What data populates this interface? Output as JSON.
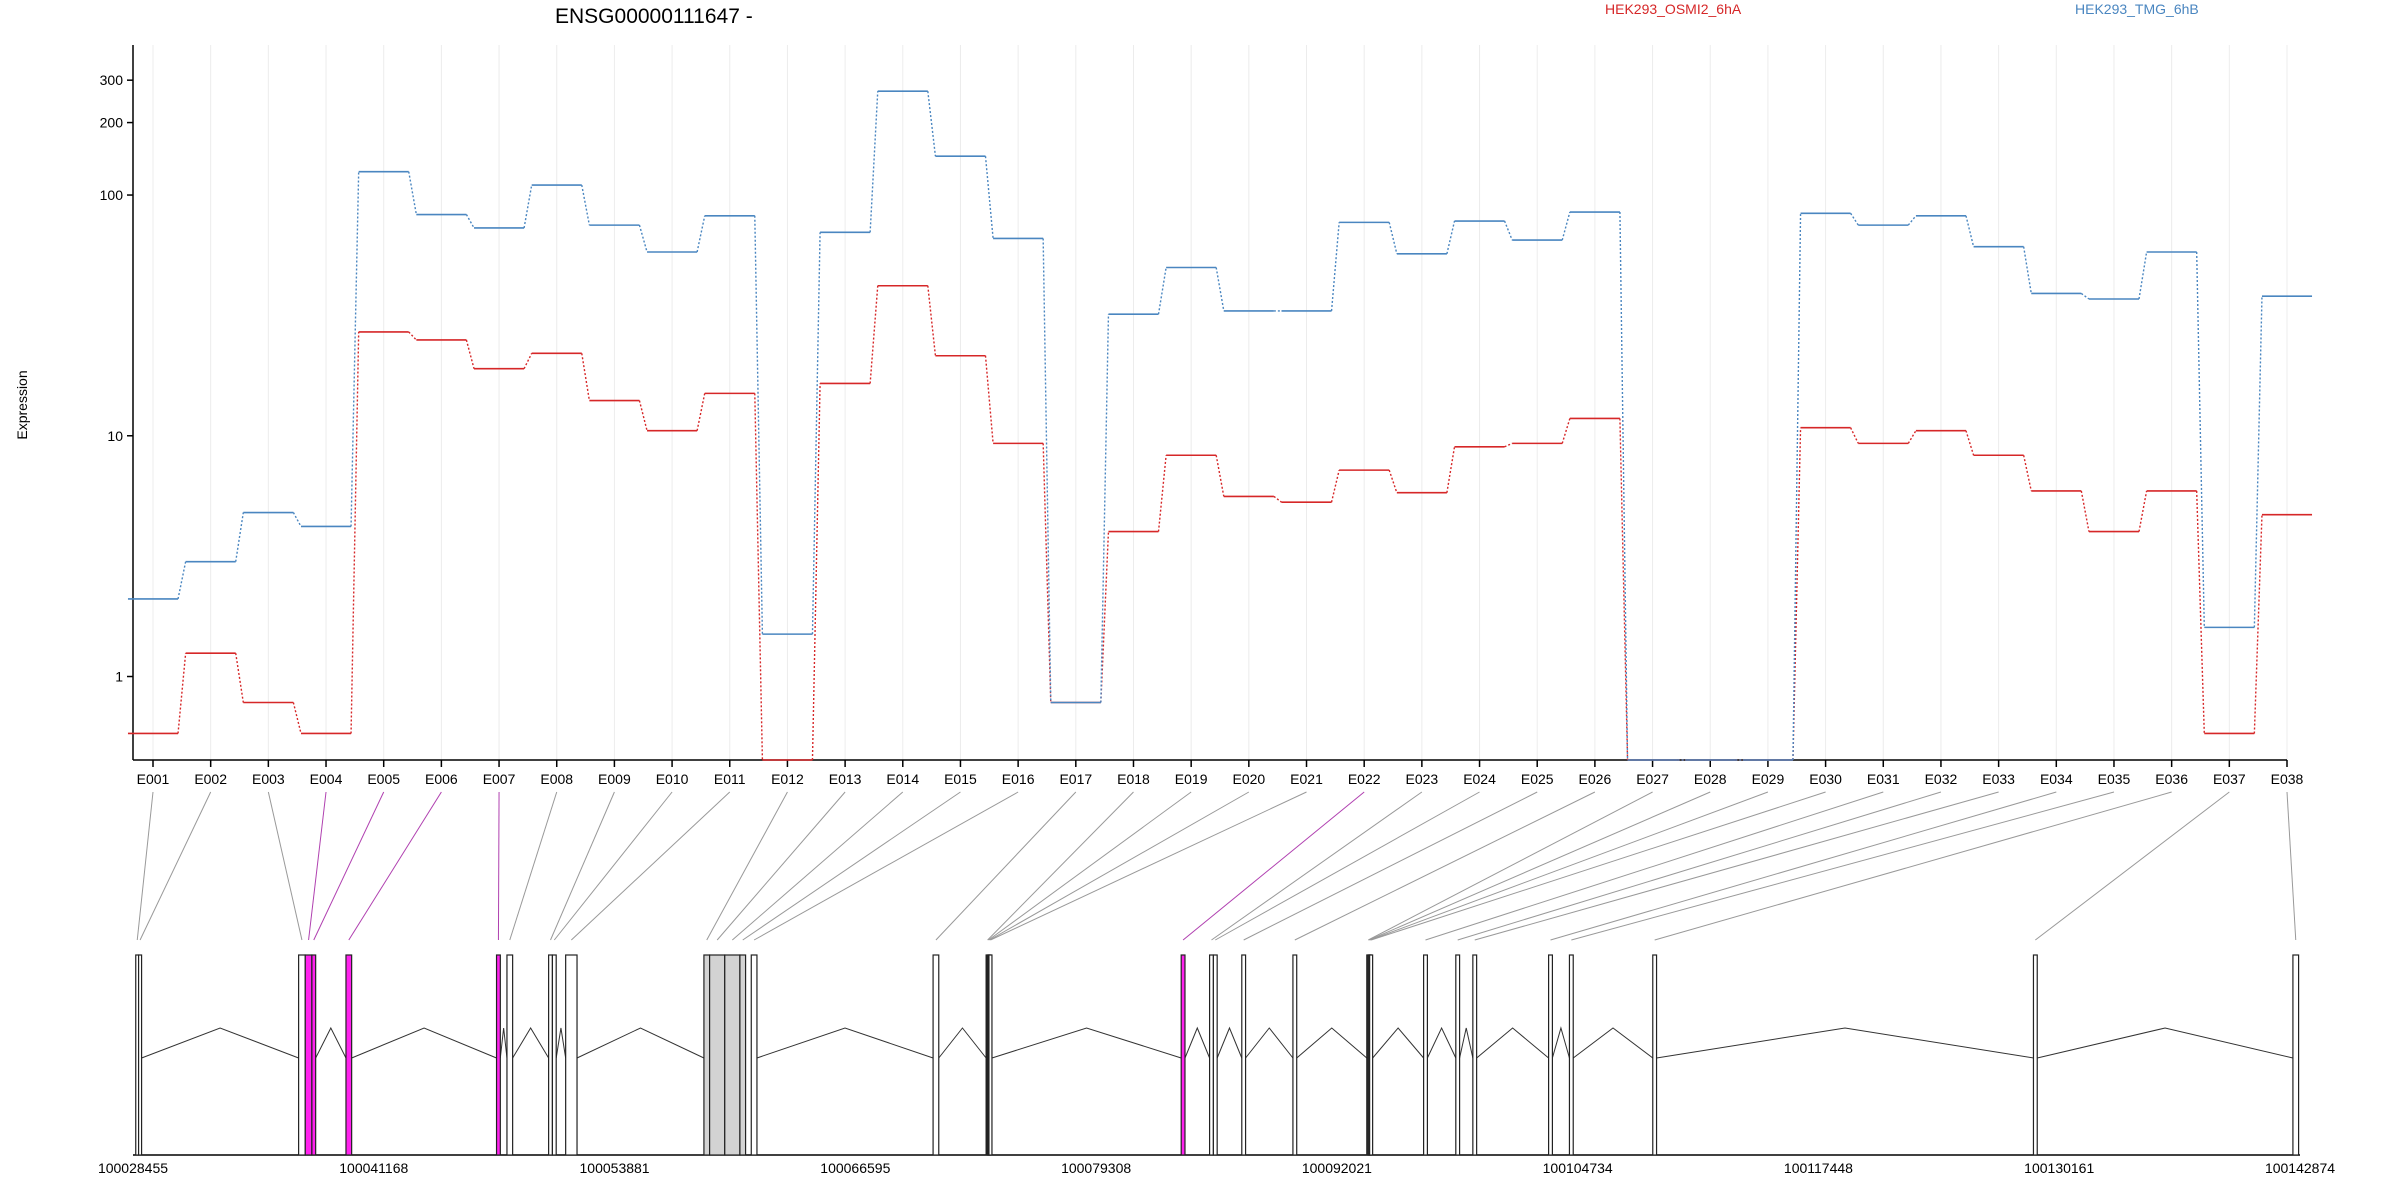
{
  "chart_data": {
    "type": "line",
    "title": "ENSG00000111647 -",
    "ylabel": "Expression",
    "yscale": "log",
    "ylim": [
      0.45,
      420
    ],
    "yticks": [
      1,
      10,
      100,
      200,
      300
    ],
    "grid": "vertical-per-exon",
    "categories": [
      "E001",
      "E002",
      "E003",
      "E004",
      "E005",
      "E006",
      "E007",
      "E008",
      "E009",
      "E010",
      "E011",
      "E012",
      "E013",
      "E014",
      "E015",
      "E016",
      "E017",
      "E018",
      "E019",
      "E020",
      "E021",
      "E022",
      "E023",
      "E024",
      "E025",
      "E026",
      "E027",
      "E028",
      "E029",
      "E030",
      "E031",
      "E032",
      "E033",
      "E034",
      "E035",
      "E036",
      "E037",
      "E038"
    ],
    "series": [
      {
        "name": "HEK293_OSMI2_6hA",
        "color": "#d62728",
        "values": [
          0.58,
          1.25,
          0.78,
          0.58,
          27,
          25,
          19,
          22,
          14,
          10.5,
          15,
          0.45,
          16.5,
          42,
          21.5,
          9.3,
          0.78,
          4,
          8.3,
          5.6,
          5.3,
          7.2,
          5.8,
          9,
          9.3,
          11.8,
          0.45,
          0.45,
          0.45,
          10.8,
          9.3,
          10.5,
          8.3,
          5.9,
          4,
          5.9,
          0.58,
          4.7
        ]
      },
      {
        "name": "HEK293_TMG_6hB",
        "color": "#4a86c0",
        "values": [
          2.1,
          3,
          4.8,
          4.2,
          125,
          83,
          73,
          110,
          75,
          58,
          82,
          1.5,
          70,
          270,
          145,
          66,
          0.78,
          32,
          50,
          33,
          33,
          77,
          57,
          78,
          65,
          85,
          0.45,
          0.45,
          0.45,
          84,
          75,
          82,
          61,
          39,
          37,
          58,
          1.6,
          38
        ]
      }
    ],
    "gene_axis": {
      "tick_labels": [
        "100028455",
        "100041168",
        "100053881",
        "100066595",
        "100079308",
        "100092021",
        "100104734",
        "100117448",
        "100130161",
        "100142874"
      ],
      "range": [
        100028455,
        100142874
      ],
      "exons": [
        {
          "id": "E001",
          "start": 100028600,
          "end": 100028750,
          "fill": "#ffffff"
        },
        {
          "id": "E002",
          "start": 100028750,
          "end": 100028900,
          "fill": "#ffffff"
        },
        {
          "id": "E003",
          "start": 100037200,
          "end": 100037550,
          "fill": "#ffffff"
        },
        {
          "id": "E004",
          "start": 100037550,
          "end": 100037900,
          "fill": "#ff22ee"
        },
        {
          "id": "E005",
          "start": 100037900,
          "end": 100038100,
          "fill": "#ff22ee"
        },
        {
          "id": "E006",
          "start": 100039700,
          "end": 100040000,
          "fill": "#ff22ee"
        },
        {
          "id": "E007",
          "start": 100047650,
          "end": 100047850,
          "fill": "#ff22ee"
        },
        {
          "id": "E008",
          "start": 100048200,
          "end": 100048500,
          "fill": "#ffffff"
        },
        {
          "id": "E009",
          "start": 100050400,
          "end": 100050600,
          "fill": "#ffffff"
        },
        {
          "id": "E010",
          "start": 100050600,
          "end": 100050800,
          "fill": "#ffffff"
        },
        {
          "id": "E011",
          "start": 100051300,
          "end": 100051900,
          "fill": "#ffffff"
        },
        {
          "id": "E012",
          "start": 100058600,
          "end": 100058900,
          "fill": "#d3d3d3"
        },
        {
          "id": "E013",
          "start": 100058900,
          "end": 100059700,
          "fill": "#d3d3d3"
        },
        {
          "id": "E014",
          "start": 100059700,
          "end": 100060500,
          "fill": "#d3d3d3"
        },
        {
          "id": "E015",
          "start": 100060500,
          "end": 100060800,
          "fill": "#d3d3d3"
        },
        {
          "id": "E016",
          "start": 100061100,
          "end": 100061400,
          "fill": "#ffffff"
        },
        {
          "id": "E017",
          "start": 100070700,
          "end": 100071000,
          "fill": "#ffffff"
        },
        {
          "id": "E018",
          "start": 100073500,
          "end": 100073550,
          "fill": "#ffffff"
        },
        {
          "id": "E019",
          "start": 100073550,
          "end": 100073600,
          "fill": "#ffffff"
        },
        {
          "id": "E020",
          "start": 100073600,
          "end": 100073650,
          "fill": "#ffffff"
        },
        {
          "id": "E021",
          "start": 100073650,
          "end": 100073700,
          "fill": "#ffffff"
        },
        {
          "id": "E022",
          "start": 100083800,
          "end": 100084000,
          "fill": "#ff22ee"
        },
        {
          "id": "E023",
          "start": 100085300,
          "end": 100085500,
          "fill": "#ffffff"
        },
        {
          "id": "E024",
          "start": 100085500,
          "end": 100085700,
          "fill": "#ffffff"
        },
        {
          "id": "E025",
          "start": 100087000,
          "end": 100087200,
          "fill": "#ffffff"
        },
        {
          "id": "E026",
          "start": 100089700,
          "end": 100089900,
          "fill": "#ffffff"
        },
        {
          "id": "E027",
          "start": 100093600,
          "end": 100093650,
          "fill": "#ffffff"
        },
        {
          "id": "E028",
          "start": 100093650,
          "end": 100093700,
          "fill": "#ffffff"
        },
        {
          "id": "E029",
          "start": 100093700,
          "end": 100093750,
          "fill": "#ffffff"
        },
        {
          "id": "E030",
          "start": 100093750,
          "end": 100093800,
          "fill": "#ffffff"
        },
        {
          "id": "E031",
          "start": 100096600,
          "end": 100096800,
          "fill": "#ffffff"
        },
        {
          "id": "E032",
          "start": 100098300,
          "end": 100098500,
          "fill": "#ffffff"
        },
        {
          "id": "E033",
          "start": 100099200,
          "end": 100099400,
          "fill": "#ffffff"
        },
        {
          "id": "E034",
          "start": 100103200,
          "end": 100103400,
          "fill": "#ffffff"
        },
        {
          "id": "E035",
          "start": 100104300,
          "end": 100104500,
          "fill": "#ffffff"
        },
        {
          "id": "E036",
          "start": 100108700,
          "end": 100108900,
          "fill": "#ffffff"
        },
        {
          "id": "E037",
          "start": 100128800,
          "end": 100129000,
          "fill": "#ffffff"
        },
        {
          "id": "E038",
          "start": 100142500,
          "end": 100142800,
          "fill": "#ffffff"
        }
      ]
    }
  }
}
